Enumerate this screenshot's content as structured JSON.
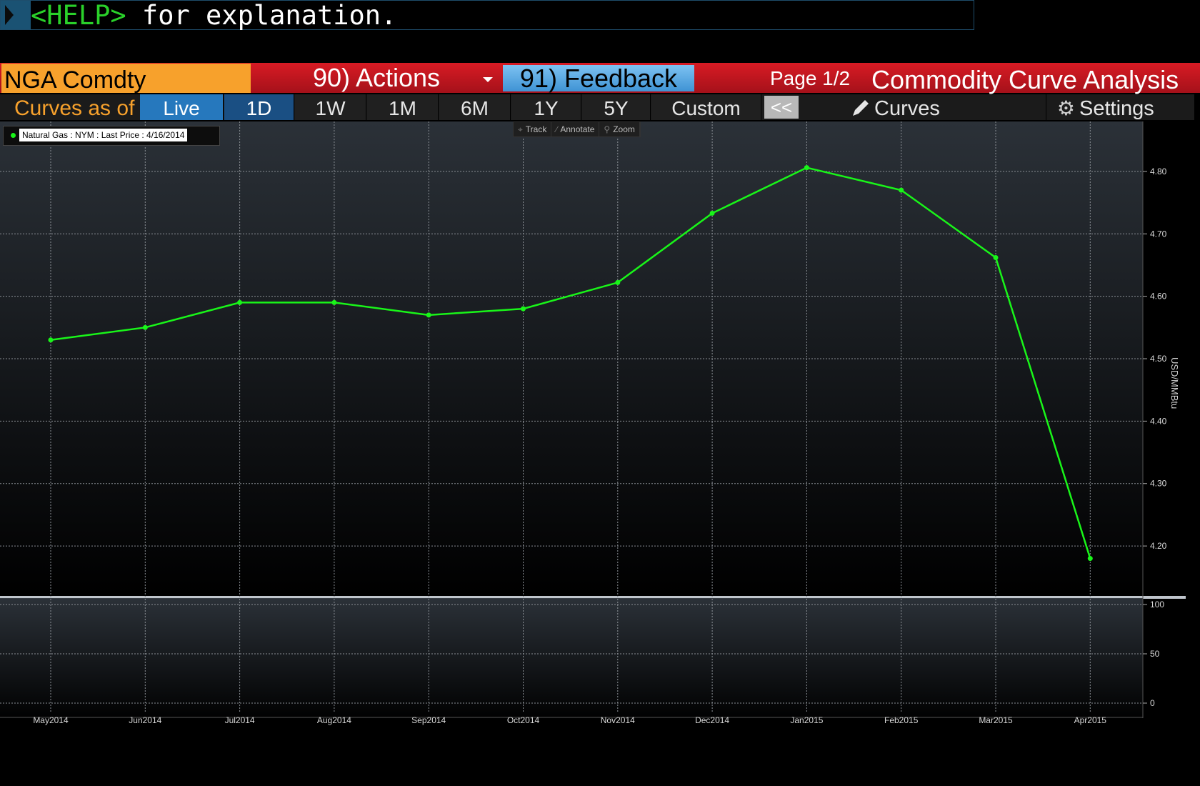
{
  "command_line": {
    "help_key": "<HELP>",
    "text": " for explanation."
  },
  "function_bar": {
    "ticker": "NGA Comdty",
    "actions_label": "90) Actions",
    "feedback_label": "91) Feedback",
    "page_indicator": "Page 1/2",
    "title": "Commodity Curve Analysis"
  },
  "range_bar": {
    "label": "Curves as of",
    "tabs": [
      "Live",
      "1D",
      "1W",
      "1M",
      "6M",
      "1Y",
      "5Y",
      "Custom"
    ],
    "collapse_label": "<<",
    "curves_label": "Curves",
    "settings_label": "Settings"
  },
  "chart_toolbar": {
    "track": "Track",
    "annotate": "Annotate",
    "zoom": "Zoom"
  },
  "legend": {
    "text": "Natural Gas : NYM : Last Price : 4/16/2014"
  },
  "colors": {
    "series": "#19f519",
    "accent_orange": "#f7a12c",
    "bar_red": "#c8151e",
    "live_blue": "#2678bd"
  },
  "chart_data": {
    "type": "line",
    "x": [
      "May2014",
      "Jun2014",
      "Jul2014",
      "Aug2014",
      "Sep2014",
      "Oct2014",
      "Nov2014",
      "Dec2014",
      "Jan2015",
      "Feb2015",
      "Mar2015",
      "Apr2015"
    ],
    "series": [
      {
        "name": "Natural Gas : NYM : Last Price : 4/16/2014",
        "values": [
          4.53,
          4.55,
          4.59,
          4.59,
          4.57,
          4.58,
          4.622,
          4.733,
          4.806,
          4.77,
          4.662,
          4.18
        ]
      }
    ],
    "ylabel": "USD/MMBtu",
    "yticks": [
      "4.20",
      "4.30",
      "4.40",
      "4.50",
      "4.60",
      "4.70",
      "4.80"
    ],
    "ylim": [
      4.12,
      4.88
    ],
    "lower_panel_ticks": [
      "0",
      "50",
      "100"
    ],
    "lower_ylim": [
      0,
      100
    ],
    "grid": true,
    "legend_position": "top-left"
  }
}
